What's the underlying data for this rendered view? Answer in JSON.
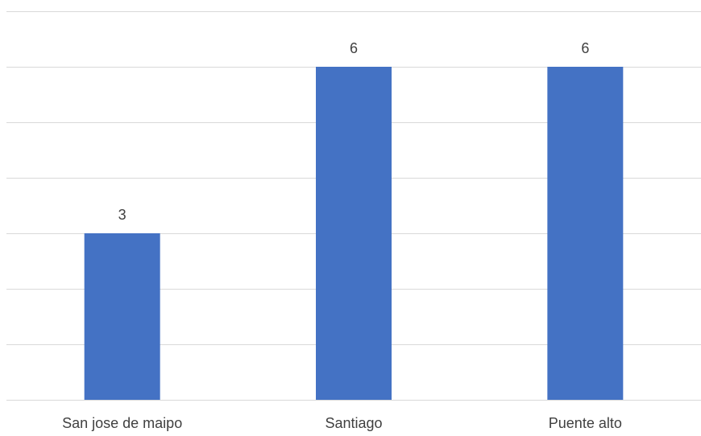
{
  "chart_data": {
    "type": "bar",
    "categories": [
      "San jose de maipo",
      "Santiago",
      "Puente alto"
    ],
    "values": [
      3,
      6,
      6
    ],
    "data_labels": [
      "3",
      "6",
      "6"
    ],
    "title": "",
    "xlabel": "",
    "ylabel": "",
    "ylim": [
      0,
      7
    ],
    "y_tick_step": 1,
    "y_tick_labels_visible": false,
    "grid": true,
    "legend": "none",
    "colors": {
      "bar": "#4472c4",
      "gridline": "#d9d9d9",
      "text": "#404040"
    }
  }
}
